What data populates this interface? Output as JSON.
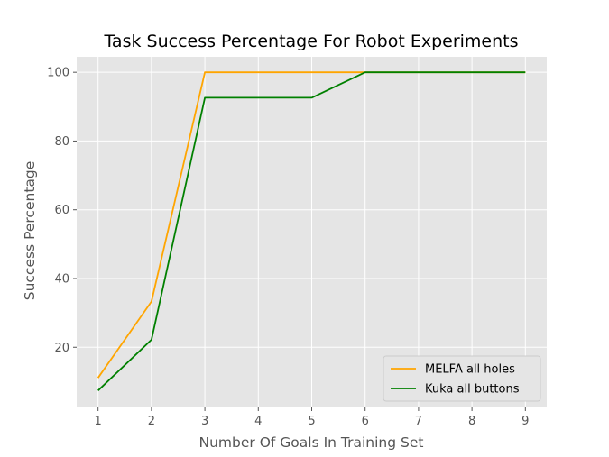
{
  "chart_data": {
    "type": "line",
    "title": "Task Success Percentage For Robot Experiments",
    "xlabel": "Number Of Goals In Training Set",
    "ylabel": "Success Percentage",
    "x": [
      1,
      2,
      3,
      4,
      5,
      6,
      7,
      8,
      9
    ],
    "xlim": [
      0.6,
      9.4
    ],
    "ylim": [
      2.5,
      104.5
    ],
    "xticks": [
      "1",
      "2",
      "3",
      "4",
      "5",
      "6",
      "7",
      "8",
      "9"
    ],
    "yticks": [
      "20",
      "40",
      "60",
      "80",
      "100"
    ],
    "grid": true,
    "legend_position": "bottom-right",
    "background": "#e5e5e5",
    "series": [
      {
        "name": "MELFA all holes",
        "color": "#ffa500",
        "values": [
          11.1,
          33.3,
          100,
          100,
          100,
          100,
          100,
          100,
          100
        ]
      },
      {
        "name": "Kuka all buttons",
        "color": "#008000",
        "values": [
          7.4,
          22.2,
          92.6,
          92.6,
          92.6,
          100,
          100,
          100,
          100
        ]
      }
    ]
  }
}
